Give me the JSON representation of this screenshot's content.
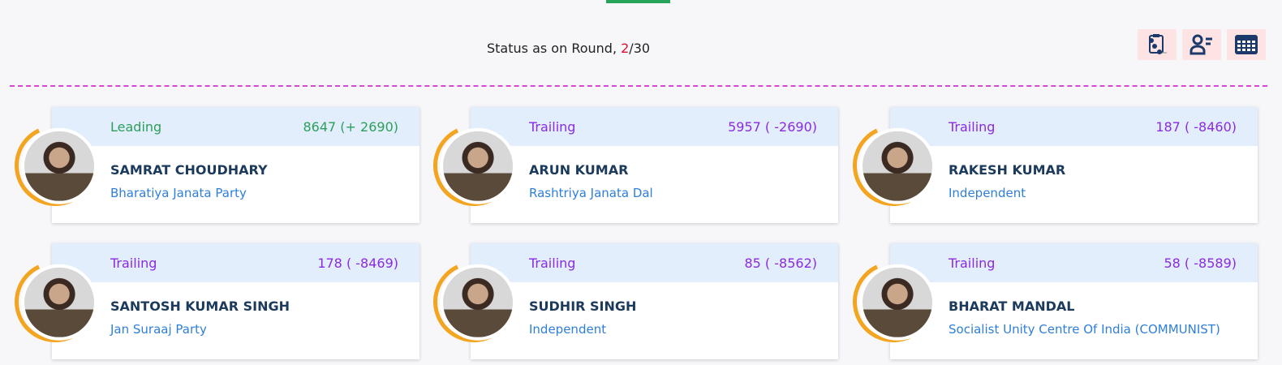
{
  "status": {
    "prefix": "Status as on Round, ",
    "current": "2",
    "sep": "/",
    "total": "30"
  },
  "toolbar": [
    {
      "icon": "clipboard-list-icon"
    },
    {
      "icon": "user-list-icon"
    },
    {
      "icon": "table-grid-icon"
    }
  ],
  "colors": {
    "leading": "#2e9e5b",
    "trailing": "#8a2be2",
    "accent": "#f3a51f",
    "divider": "#d548d5"
  },
  "candidates": [
    {
      "status": "Leading",
      "votes": "8647 (+ 2690)",
      "name": "SAMRAT CHOUDHARY",
      "party": "Bharatiya Janata Party"
    },
    {
      "status": "Trailing",
      "votes": "5957 ( -2690)",
      "name": "ARUN KUMAR",
      "party": "Rashtriya Janata Dal"
    },
    {
      "status": "Trailing",
      "votes": "187 ( -8460)",
      "name": "RAKESH KUMAR",
      "party": "Independent"
    },
    {
      "status": "Trailing",
      "votes": "178 ( -8469)",
      "name": "SANTOSH KUMAR SINGH",
      "party": "Jan Suraaj Party"
    },
    {
      "status": "Trailing",
      "votes": "85 ( -8562)",
      "name": "SUDHIR SINGH",
      "party": "Independent"
    },
    {
      "status": "Trailing",
      "votes": "58 ( -8589)",
      "name": "BHARAT MANDAL",
      "party": "Socialist Unity Centre Of India (COMMUNIST)"
    }
  ]
}
